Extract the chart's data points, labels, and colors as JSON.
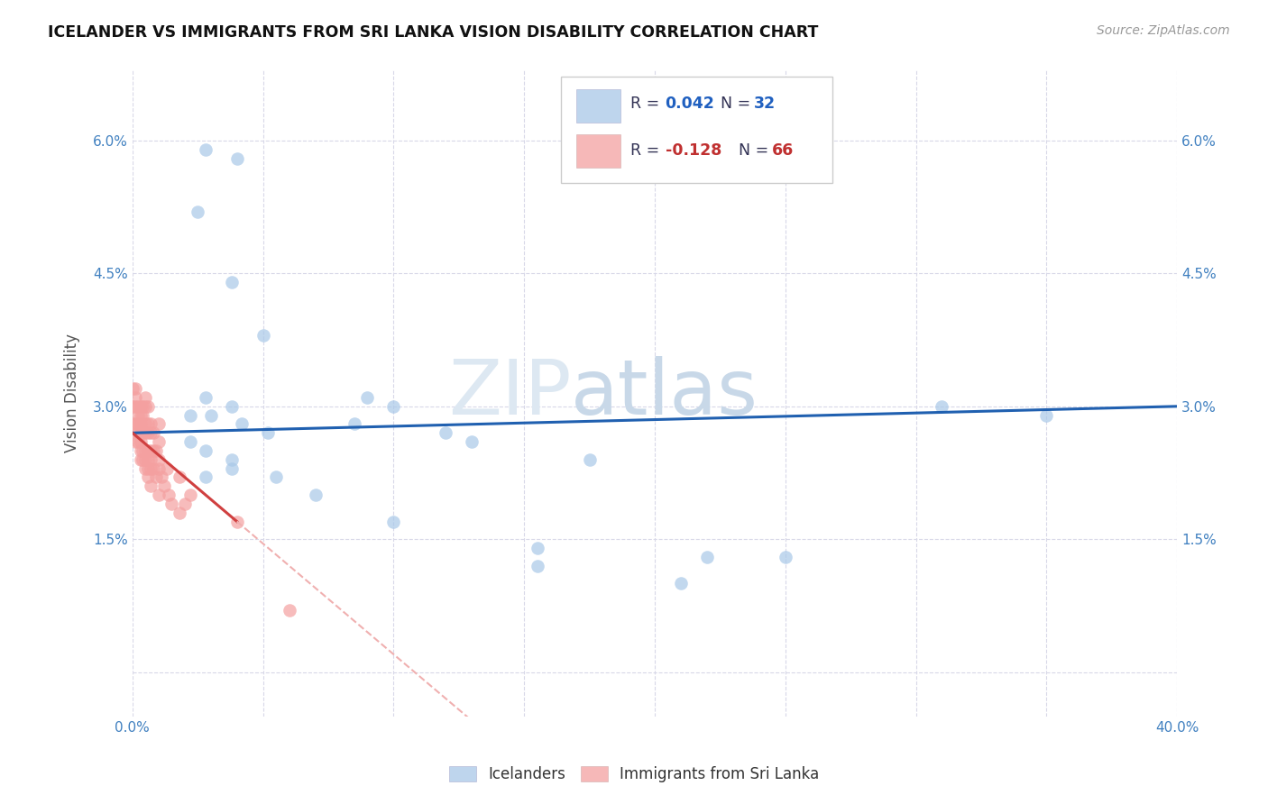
{
  "title": "ICELANDER VS IMMIGRANTS FROM SRI LANKA VISION DISABILITY CORRELATION CHART",
  "source": "Source: ZipAtlas.com",
  "ylabel": "Vision Disability",
  "xlim": [
    0.0,
    0.4
  ],
  "ylim": [
    -0.005,
    0.068
  ],
  "xticks": [
    0.0,
    0.05,
    0.1,
    0.15,
    0.2,
    0.25,
    0.3,
    0.35,
    0.4
  ],
  "xticklabels": [
    "0.0%",
    "",
    "",
    "",
    "",
    "",
    "",
    "",
    "40.0%"
  ],
  "yticks": [
    0.0,
    0.015,
    0.03,
    0.045,
    0.06
  ],
  "yticklabels": [
    "",
    "1.5%",
    "3.0%",
    "4.5%",
    "6.0%"
  ],
  "background_color": "#ffffff",
  "grid_color": "#d8d8e8",
  "blue_color": "#a8c8e8",
  "pink_color": "#f4a0a0",
  "blue_line_color": "#2060b0",
  "pink_line_color": "#d04040",
  "pink_dash_color": "#f0b0b0",
  "legend_r1": "0.042",
  "legend_n1": "32",
  "legend_r2": "-0.128",
  "legend_n2": "66",
  "icelanders_x": [
    0.028,
    0.04,
    0.025,
    0.038,
    0.05,
    0.028,
    0.038,
    0.022,
    0.03,
    0.028,
    0.038,
    0.028,
    0.042,
    0.052,
    0.022,
    0.038,
    0.055,
    0.09,
    0.1,
    0.085,
    0.07,
    0.1,
    0.12,
    0.13,
    0.155,
    0.155,
    0.175,
    0.22,
    0.25,
    0.21,
    0.31,
    0.35
  ],
  "icelanders_y": [
    0.059,
    0.058,
    0.052,
    0.044,
    0.038,
    0.031,
    0.03,
    0.029,
    0.029,
    0.025,
    0.024,
    0.022,
    0.028,
    0.027,
    0.026,
    0.023,
    0.022,
    0.031,
    0.03,
    0.028,
    0.02,
    0.017,
    0.027,
    0.026,
    0.014,
    0.012,
    0.024,
    0.013,
    0.013,
    0.01,
    0.03,
    0.029
  ],
  "srilanka_x": [
    0.0,
    0.0,
    0.0,
    0.001,
    0.001,
    0.001,
    0.001,
    0.001,
    0.002,
    0.002,
    0.002,
    0.002,
    0.002,
    0.003,
    0.003,
    0.003,
    0.003,
    0.003,
    0.003,
    0.003,
    0.004,
    0.004,
    0.004,
    0.004,
    0.004,
    0.005,
    0.005,
    0.005,
    0.005,
    0.005,
    0.005,
    0.005,
    0.006,
    0.006,
    0.006,
    0.006,
    0.006,
    0.006,
    0.006,
    0.007,
    0.007,
    0.007,
    0.007,
    0.007,
    0.007,
    0.008,
    0.008,
    0.008,
    0.009,
    0.009,
    0.01,
    0.01,
    0.01,
    0.01,
    0.01,
    0.011,
    0.012,
    0.013,
    0.014,
    0.015,
    0.018,
    0.018,
    0.02,
    0.022,
    0.04,
    0.06
  ],
  "srilanka_y": [
    0.032,
    0.03,
    0.028,
    0.032,
    0.031,
    0.03,
    0.028,
    0.026,
    0.03,
    0.029,
    0.028,
    0.027,
    0.026,
    0.03,
    0.029,
    0.028,
    0.027,
    0.026,
    0.025,
    0.024,
    0.03,
    0.029,
    0.027,
    0.025,
    0.024,
    0.031,
    0.03,
    0.028,
    0.027,
    0.025,
    0.024,
    0.023,
    0.03,
    0.028,
    0.027,
    0.025,
    0.024,
    0.023,
    0.022,
    0.028,
    0.027,
    0.025,
    0.024,
    0.023,
    0.021,
    0.027,
    0.025,
    0.023,
    0.025,
    0.022,
    0.028,
    0.026,
    0.024,
    0.023,
    0.02,
    0.022,
    0.021,
    0.023,
    0.02,
    0.019,
    0.022,
    0.018,
    0.019,
    0.02,
    0.017,
    0.007
  ]
}
